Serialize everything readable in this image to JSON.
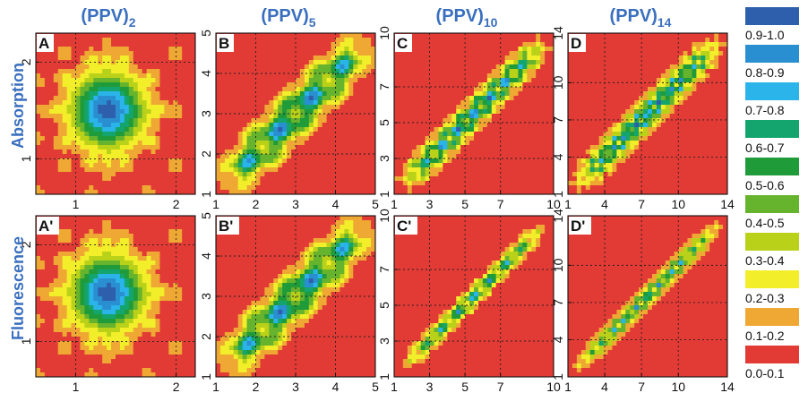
{
  "row_labels": [
    "Absorption",
    "Fluorescence"
  ],
  "legend": {
    "entries": [
      {
        "label": "0.9-1.0",
        "color": "#2e5fac"
      },
      {
        "label": "0.8-0.9",
        "color": "#2a8fd0"
      },
      {
        "label": "0.7-0.8",
        "color": "#2ab4ea"
      },
      {
        "label": "0.6-0.7",
        "color": "#14a56e"
      },
      {
        "label": "0.5-0.6",
        "color": "#1f9b3a"
      },
      {
        "label": "0.4-0.5",
        "color": "#66b32e"
      },
      {
        "label": "0.3-0.4",
        "color": "#b9d219"
      },
      {
        "label": "0.2-0.3",
        "color": "#f2ee2a"
      },
      {
        "label": "0.1-0.2",
        "color": "#eea833"
      },
      {
        "label": "0.0-0.1",
        "color": "#e23a35"
      }
    ]
  },
  "chart_data": [
    {
      "type": "heatmap",
      "panel": "A",
      "column": "(PPV)",
      "n": "2",
      "row": "Absorption",
      "size": 2,
      "xticks": [
        "1",
        "2"
      ],
      "yticks": [
        "1",
        "2"
      ],
      "pattern": "central"
    },
    {
      "type": "heatmap",
      "panel": "B",
      "column": "(PPV)",
      "n": "5",
      "row": "Absorption",
      "size": 5,
      "xticks": [
        "1",
        "2",
        "3",
        "4",
        "5"
      ],
      "yticks": [
        "1",
        "2",
        "3",
        "4",
        "5"
      ],
      "pattern": "diagonal"
    },
    {
      "type": "heatmap",
      "panel": "C",
      "column": "(PPV)",
      "n": "10",
      "row": "Absorption",
      "size": 10,
      "xticks": [
        "1",
        "3",
        "5",
        "7",
        "10"
      ],
      "yticks": [
        "1",
        "3",
        "5",
        "7",
        "10"
      ],
      "pattern": "diagonal"
    },
    {
      "type": "heatmap",
      "panel": "D",
      "column": "(PPV)",
      "n": "14",
      "row": "Absorption",
      "size": 14,
      "xticks": [
        "1",
        "4",
        "7",
        "10",
        "14"
      ],
      "yticks": [
        "1",
        "4",
        "7",
        "10",
        "14"
      ],
      "pattern": "diagonal"
    },
    {
      "type": "heatmap",
      "panel": "A'",
      "column": "(PPV)",
      "n": "2",
      "row": "Fluorescence",
      "size": 2,
      "xticks": [
        "1",
        "2"
      ],
      "yticks": [
        "1",
        "2"
      ],
      "pattern": "central"
    },
    {
      "type": "heatmap",
      "panel": "B'",
      "column": "(PPV)",
      "n": "5",
      "row": "Fluorescence",
      "size": 5,
      "xticks": [
        "1",
        "2",
        "3",
        "4",
        "5"
      ],
      "yticks": [
        "1",
        "2",
        "3",
        "4",
        "5"
      ],
      "pattern": "diagonal"
    },
    {
      "type": "heatmap",
      "panel": "C'",
      "column": "(PPV)",
      "n": "10",
      "row": "Fluorescence",
      "size": 10,
      "xticks": [
        "1",
        "3",
        "5",
        "7",
        "10"
      ],
      "yticks": [
        "1",
        "3",
        "5",
        "7",
        "10"
      ],
      "pattern": "diagonal-narrow"
    },
    {
      "type": "heatmap",
      "panel": "D'",
      "column": "(PPV)",
      "n": "14",
      "row": "Fluorescence",
      "size": 14,
      "xticks": [
        "1",
        "4",
        "7",
        "10",
        "14"
      ],
      "yticks": [
        "1",
        "4",
        "7",
        "10",
        "14"
      ],
      "pattern": "diagonal-narrow"
    }
  ]
}
